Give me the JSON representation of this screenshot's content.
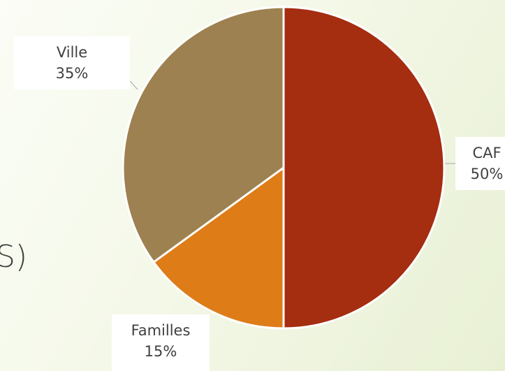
{
  "slide": {
    "partial_text": "S)"
  },
  "chart_data": {
    "type": "pie",
    "slices": [
      {
        "label": "CAF",
        "value": 50,
        "percent_label": "50%",
        "color": "#a52d10"
      },
      {
        "label": "Familles",
        "value": 15,
        "percent_label": "15%",
        "color": "#de7c18"
      },
      {
        "label": "Ville",
        "value": 35,
        "percent_label": "35%",
        "color": "#9e8150"
      }
    ],
    "start_angle": "12 o'clock",
    "direction": "clockwise",
    "slice_border_color": "#ffffff"
  }
}
